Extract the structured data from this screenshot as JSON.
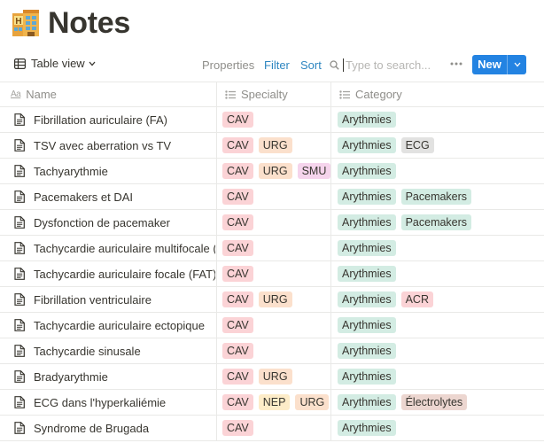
{
  "page": {
    "title": "Notes",
    "icon": "hotel-icon"
  },
  "toolbar": {
    "view_label": "Table view",
    "properties_label": "Properties",
    "filter_label": "Filter",
    "sort_label": "Sort",
    "search_placeholder": "Type to search...",
    "new_label": "New"
  },
  "columns": {
    "name": "Name",
    "specialty": "Specialty",
    "category": "Category"
  },
  "tag_colors": {
    "CAV": "#fbd3d6",
    "URG": "#fbe0cc",
    "SMU": "#f5d4ec",
    "NEP": "#fdecc8",
    "Arythmies": "#d3ece3",
    "ECG": "#e2e2e1",
    "Pacemakers": "#d3ece3",
    "ACR": "#fbd3d6",
    "Électrolytes": "#ecd6d0"
  },
  "rows": [
    {
      "name": "Fibrillation auriculaire (FA)",
      "specialty": [
        "CAV"
      ],
      "category": [
        "Arythmies"
      ]
    },
    {
      "name": "TSV avec aberration vs TV",
      "specialty": [
        "CAV",
        "URG"
      ],
      "category": [
        "Arythmies",
        "ECG"
      ]
    },
    {
      "name": "Tachyarythmie",
      "specialty": [
        "CAV",
        "URG",
        "SMU"
      ],
      "category": [
        "Arythmies"
      ]
    },
    {
      "name": "Pacemakers et DAI",
      "specialty": [
        "CAV"
      ],
      "category": [
        "Arythmies",
        "Pacemakers"
      ]
    },
    {
      "name": "Dysfonction de pacemaker",
      "specialty": [
        "CAV"
      ],
      "category": [
        "Arythmies",
        "Pacemakers"
      ]
    },
    {
      "name": "Tachycardie auriculaire multifocale (I",
      "specialty": [
        "CAV"
      ],
      "category": [
        "Arythmies"
      ]
    },
    {
      "name": "Tachycardie auriculaire focale (FAT)",
      "specialty": [
        "CAV"
      ],
      "category": [
        "Arythmies"
      ]
    },
    {
      "name": "Fibrillation ventriculaire",
      "specialty": [
        "CAV",
        "URG"
      ],
      "category": [
        "Arythmies",
        "ACR"
      ]
    },
    {
      "name": "Tachycardie auriculaire ectopique",
      "specialty": [
        "CAV"
      ],
      "category": [
        "Arythmies"
      ]
    },
    {
      "name": "Tachycardie sinusale",
      "specialty": [
        "CAV"
      ],
      "category": [
        "Arythmies"
      ]
    },
    {
      "name": "Bradyarythmie",
      "specialty": [
        "CAV",
        "URG"
      ],
      "category": [
        "Arythmies"
      ]
    },
    {
      "name": "ECG dans l'hyperkaliémie",
      "specialty": [
        "CAV",
        "NEP",
        "URG"
      ],
      "category": [
        "Arythmies",
        "Électrolytes"
      ]
    },
    {
      "name": "Syndrome de Brugada",
      "specialty": [
        "CAV"
      ],
      "category": [
        "Arythmies"
      ]
    }
  ]
}
